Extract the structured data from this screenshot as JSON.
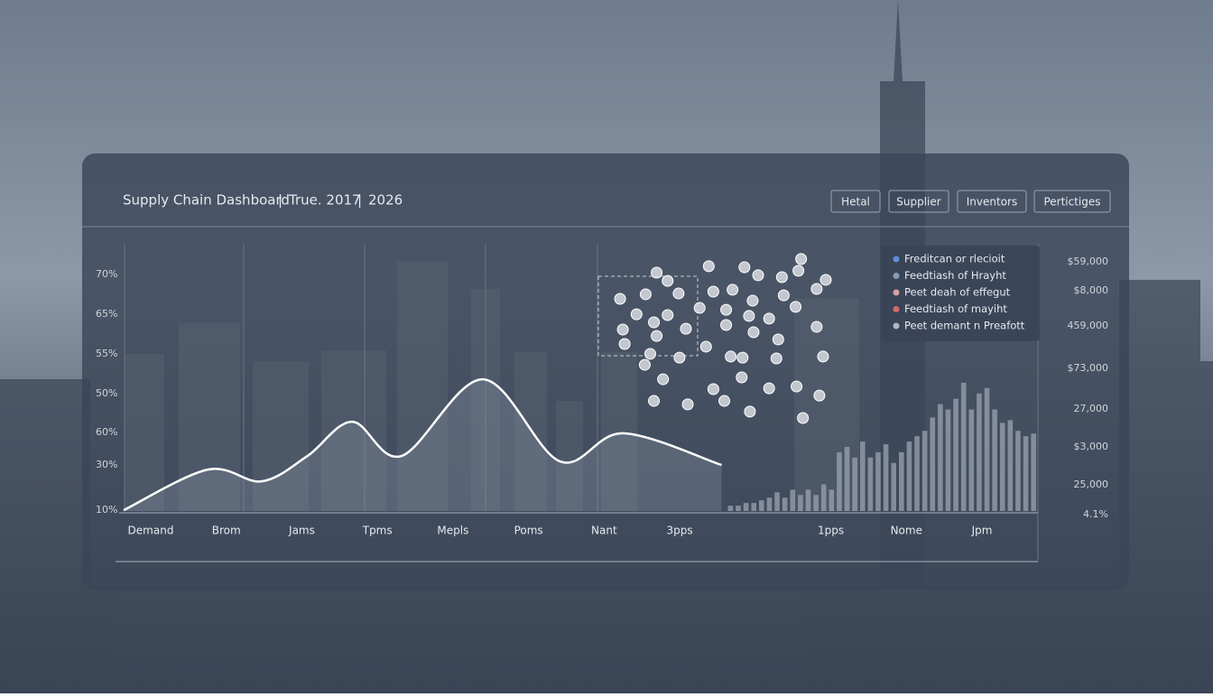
{
  "header": {
    "title": "Supply Chain Dashboard",
    "period": "True. 2017",
    "year": "2026"
  },
  "tabs": [
    "Hetal",
    "Supplier",
    "Inventors",
    "Pertictiges"
  ],
  "left_axis_labels": [
    "70%",
    "65%",
    "55%",
    "50%",
    "60%",
    "30%",
    "10%"
  ],
  "right_axis_labels": [
    "$59,000",
    "$8,000",
    "459,000",
    "$73,000",
    "27,000",
    "$3,000",
    "25,000",
    "4.1%"
  ],
  "legend": [
    {
      "name": "Freditcan or rlecioit",
      "color": "#5b8fd6"
    },
    {
      "name": "Feedtiash of Hrayht",
      "color": "#8a9bb8"
    },
    {
      "name": "Peet deah of effegut",
      "color": "#d8a0a0"
    },
    {
      "name": "Feedtiash of mayiht",
      "color": "#d06a6a"
    },
    {
      "name": "Peet demant n Preafott",
      "color": "#b4b8be"
    }
  ],
  "chart_data": {
    "type": "line",
    "categories": [
      "Demand",
      "Brom",
      "Jams",
      "Tpms",
      "Mepls",
      "Poms",
      "Nant",
      "3pps",
      null,
      "1pps",
      "Nome",
      "Jpm"
    ],
    "xlim": [
      0,
      100
    ],
    "ylim": [
      0,
      100
    ],
    "line": {
      "x": [
        0,
        9.2,
        15.1,
        20.1,
        25.0,
        30.4,
        39.3,
        47.7,
        54.6,
        65.4
      ],
      "values": [
        0.3,
        15.5,
        11.1,
        20.6,
        33.4,
        20.6,
        49.3,
        18.6,
        29.1,
        17.2
      ],
      "color": "#ffffff"
    },
    "scatter": {
      "x": [
        58.3,
        64.0,
        67.9,
        74.1,
        69.4,
        72.0,
        73.8,
        76.8,
        54.3,
        57.1,
        59.5,
        60.7,
        64.5,
        66.6,
        68.8,
        72.2,
        75.8,
        56.1,
        58.0,
        59.5,
        63.0,
        65.9,
        68.4,
        70.6,
        73.5,
        54.6,
        58.3,
        61.5,
        65.9,
        68.9,
        71.6,
        75.8,
        54.8,
        57.6,
        60.8,
        63.7,
        66.4,
        67.7,
        71.4,
        76.5,
        57.0,
        59.0,
        64.5,
        67.6,
        70.6,
        73.6,
        76.1,
        58.0,
        61.7,
        65.7,
        68.5,
        74.3
      ],
      "values": [
        89.2,
        91.6,
        91.2,
        94.3,
        88.2,
        87.5,
        89.9,
        86.5,
        79.4,
        81.1,
        86.1,
        81.4,
        82.1,
        82.8,
        78.7,
        80.7,
        83.1,
        73.6,
        70.6,
        73.3,
        76.0,
        75.3,
        73.0,
        72.0,
        76.4,
        67.9,
        65.5,
        68.2,
        69.6,
        66.9,
        64.2,
        68.9,
        62.5,
        58.8,
        57.4,
        61.5,
        57.8,
        57.4,
        57.1,
        57.8,
        54.7,
        49.3,
        45.6,
        50.0,
        45.9,
        46.6,
        43.2,
        41.2,
        39.9,
        41.2,
        37.2,
        34.8
      ],
      "color": "#d8dce2"
    },
    "bars": {
      "xlim": [
        66,
        100
      ],
      "values": [
        2,
        2,
        3,
        3,
        4,
        5,
        7,
        5,
        8,
        6,
        8,
        6,
        10,
        8,
        22,
        24,
        20,
        26,
        20,
        22,
        25,
        18,
        22,
        26,
        28,
        30,
        35,
        40,
        38,
        42,
        48,
        38,
        44,
        46,
        38,
        33,
        34,
        30,
        28,
        29
      ],
      "color": "#9aa3b0"
    }
  }
}
